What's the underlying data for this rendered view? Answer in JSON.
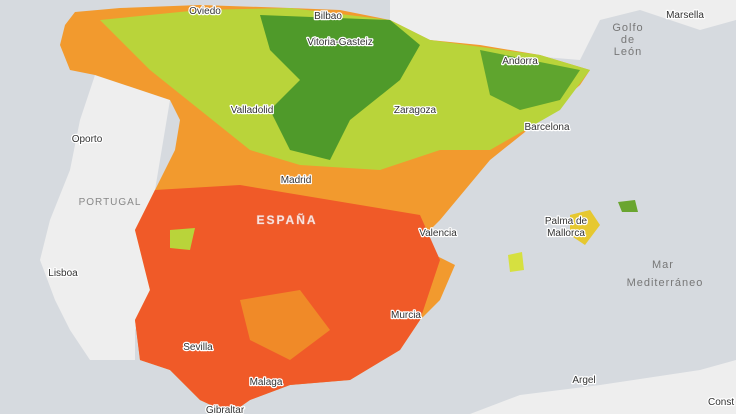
{
  "map": {
    "labels": [
      "Oviedo",
      "Bilbao",
      "Vitoria-Gasteiz",
      "Andorra",
      "Golfo",
      "de",
      "León",
      "Marsella",
      "Valladolid",
      "Zaragoza",
      "Barcelona",
      "Oporto",
      "PORTUGAL",
      "Madrid",
      "ESPAÑA",
      "Palma de",
      "Mallorca",
      "Valencia",
      "Mar",
      "Mediterráneo",
      "Lisboa",
      "Murcia",
      "Sevilla",
      "Malaga",
      "Argel",
      "Gibraltar",
      "Const"
    ]
  }
}
